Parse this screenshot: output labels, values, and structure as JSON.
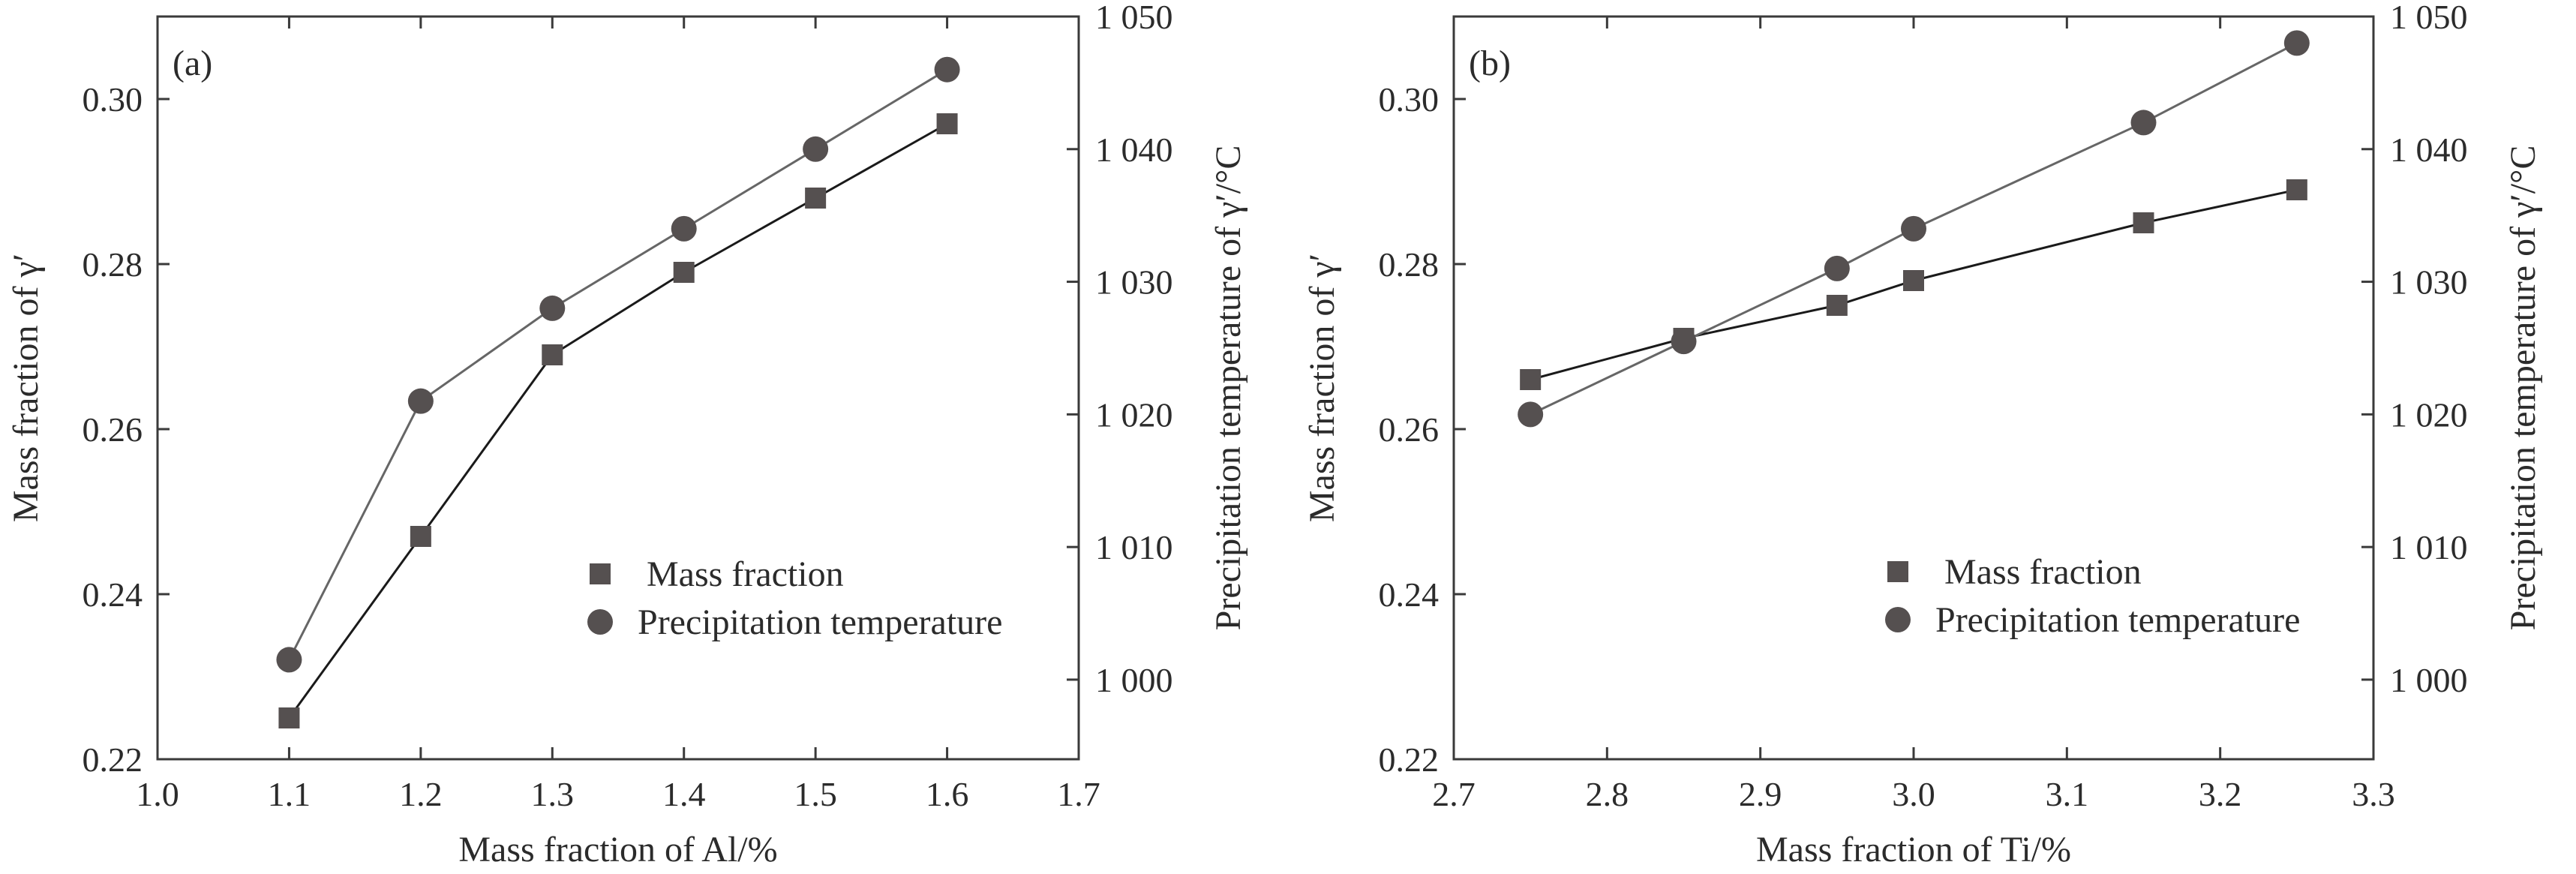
{
  "colors": {
    "mass_fraction": "#555050",
    "precipitation_temperature": "#555050",
    "line_mass_fraction": "#1a1a1a",
    "line_precipitation_temperature": "#666666",
    "axis": "#3a3a3a"
  },
  "chart_data": [
    {
      "type": "line",
      "panel_label": "(a)",
      "xlabel": "Mass fraction of Al/%",
      "ylabel": "Mass fraction of γ′",
      "y2label": "Precipitation temperature of γ′/°C",
      "xlim": [
        1.0,
        1.7
      ],
      "ylim": [
        0.22,
        0.31
      ],
      "y2lim": [
        994,
        1050
      ],
      "x_ticks": [
        "1.0",
        "1.1",
        "1.2",
        "1.3",
        "1.4",
        "1.5",
        "1.6",
        "1.7"
      ],
      "y_ticks": [
        "0.22",
        "0.24",
        "0.26",
        "0.28",
        "0.30"
      ],
      "y2_ticks": [
        "1 000",
        "1 010",
        "1 020",
        "1 030",
        "1 040",
        "1 050"
      ],
      "legend_placement": "lower-right",
      "series": [
        {
          "name": "Mass fraction",
          "axis": "left",
          "marker": "square",
          "x": [
            1.1,
            1.2,
            1.3,
            1.4,
            1.5,
            1.6
          ],
          "y": [
            0.225,
            0.247,
            0.269,
            0.279,
            0.288,
            0.297
          ]
        },
        {
          "name": "Precipitation temperature",
          "axis": "right",
          "marker": "circle",
          "x": [
            1.1,
            1.2,
            1.3,
            1.4,
            1.5,
            1.6
          ],
          "y": [
            1001.5,
            1021,
            1028,
            1034,
            1040,
            1046
          ]
        }
      ]
    },
    {
      "type": "line",
      "panel_label": "(b)",
      "xlabel": "Mass fraction of Ti/%",
      "ylabel": "Mass fraction of γ′",
      "y2label": "Precipitation temperature of γ′/°C",
      "xlim": [
        2.7,
        3.3
      ],
      "ylim": [
        0.22,
        0.31
      ],
      "y2lim": [
        994,
        1050
      ],
      "x_ticks": [
        "2.7",
        "2.8",
        "2.9",
        "3.0",
        "3.1",
        "3.2",
        "3.3"
      ],
      "y_ticks": [
        "0.22",
        "0.24",
        "0.26",
        "0.28",
        "0.30"
      ],
      "y2_ticks": [
        "1 000",
        "1 010",
        "1 020",
        "1 030",
        "1 040",
        "1 050"
      ],
      "legend_placement": "lower-right",
      "series": [
        {
          "name": "Mass fraction",
          "axis": "left",
          "marker": "square",
          "x": [
            2.75,
            2.85,
            2.95,
            3.0,
            3.15,
            3.25
          ],
          "y": [
            0.266,
            0.271,
            0.275,
            0.278,
            0.285,
            0.289
          ]
        },
        {
          "name": "Precipitation temperature",
          "axis": "right",
          "marker": "circle",
          "x": [
            2.75,
            2.85,
            2.95,
            3.0,
            3.15,
            3.25
          ],
          "y": [
            1020,
            1025.5,
            1031,
            1034,
            1042,
            1048
          ]
        }
      ]
    }
  ]
}
